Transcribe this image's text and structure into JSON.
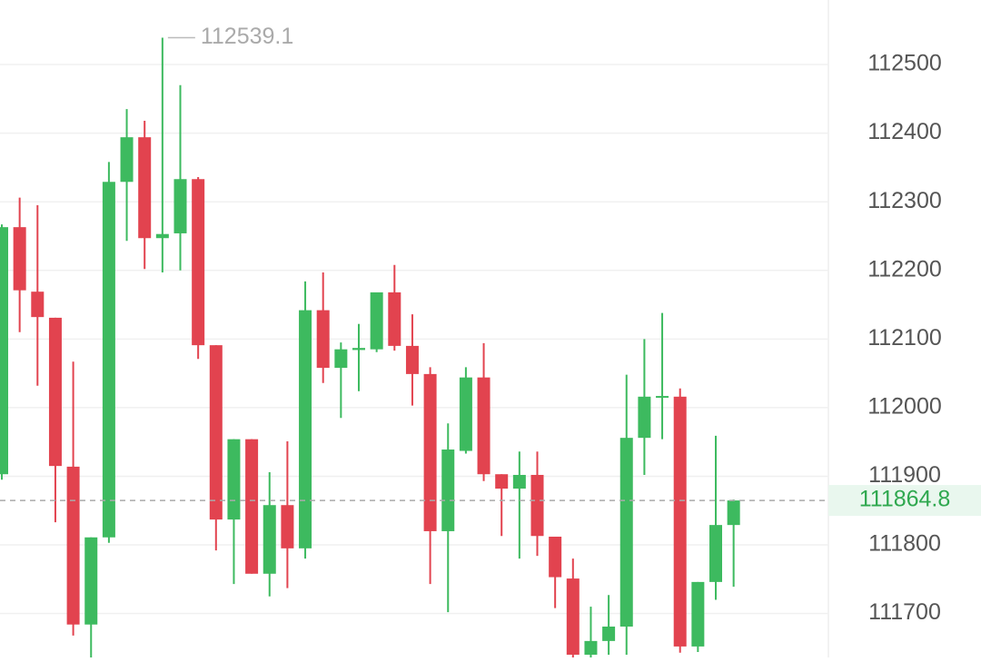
{
  "chart_data": {
    "type": "candlestick",
    "open": [
      111903,
      112263,
      112169,
      112131,
      111914,
      111684,
      111811,
      112329,
      112394,
      112247,
      112254,
      112333,
      112091,
      111837,
      111954,
      111758,
      111858,
      111795,
      112142,
      112058,
      112084,
      112085,
      112168,
      112090,
      112049,
      111820,
      111937,
      112044,
      111903,
      111882,
      111902,
      111812,
      111751,
      111640,
      111660,
      111681,
      111956,
      112015,
      112016,
      111652,
      111746,
      111829
    ],
    "high": [
      112267,
      112306,
      112295,
      112131,
      112067,
      111811,
      112358,
      112435,
      112418,
      112539.1,
      112470,
      112336,
      112091,
      111954,
      111954,
      111906,
      111951,
      112184,
      112197,
      112095,
      112122,
      112168,
      112208,
      112136,
      112059,
      111977,
      112059,
      112094,
      111903,
      111936,
      111936,
      111812,
      111780,
      111710,
      111727,
      112048,
      112100,
      112138,
      112028,
      111746,
      111959,
      111866
    ],
    "low": [
      111895,
      112110,
      112032,
      111833,
      111668,
      111636,
      111803,
      112243,
      112202,
      112197,
      112200,
      112071,
      111792,
      111743,
      111758,
      111725,
      111737,
      111780,
      112036,
      111985,
      112024,
      112081,
      112083,
      112003,
      111743,
      111702,
      111933,
      111893,
      111813,
      111780,
      111784,
      111708,
      111636,
      111636,
      111640,
      111640,
      111902,
      111954,
      111643,
      111644,
      111720,
      111739
    ],
    "close": [
      112263,
      112171,
      112132,
      111915,
      111684,
      111811,
      112329,
      112394,
      112247,
      112253,
      112333,
      112091,
      111837,
      111954,
      111758,
      111858,
      111795,
      112142,
      112058,
      112085,
      112087,
      112168,
      112090,
      112049,
      111820,
      111939,
      112044,
      111903,
      111882,
      111902,
      111813,
      111753,
      111640,
      111660,
      111681,
      111956,
      112016,
      112017,
      111652,
      111746,
      111829,
      111864.8
    ],
    "up_color": "#3dba5f",
    "down_color": "#e2434f",
    "ylim": [
      111636,
      112594
    ],
    "yticks": [
      111700,
      111800,
      111900,
      112000,
      112100,
      112200,
      112300,
      112400,
      112500
    ],
    "grid": true
  }
}
